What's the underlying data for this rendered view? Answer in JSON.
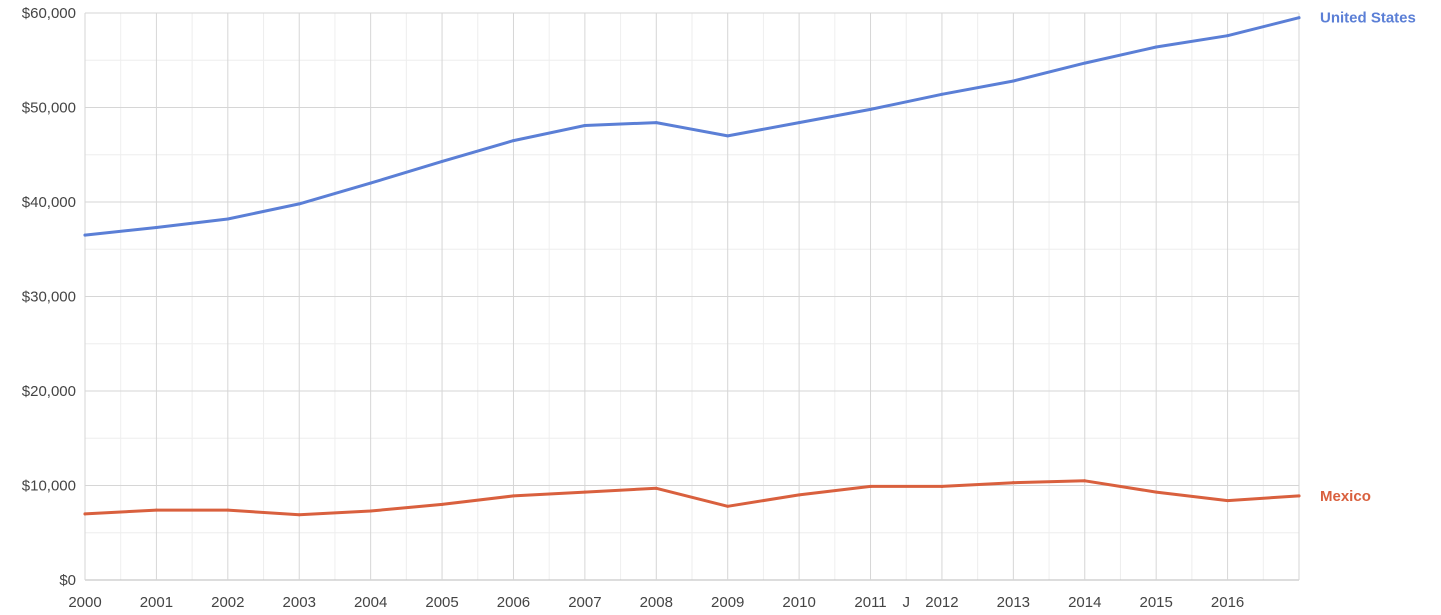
{
  "chart_data": {
    "type": "line",
    "x_ticks": [
      "2000",
      "2001",
      "2002",
      "2003",
      "2004",
      "2005",
      "2006",
      "2007",
      "2008",
      "2009",
      "2010",
      "2011",
      "2012",
      "2013",
      "2014",
      "2015",
      "2016"
    ],
    "extra_x_label": "J",
    "y_ticks": [
      "$0",
      "$10,000",
      "$20,000",
      "$30,000",
      "$40,000",
      "$50,000",
      "$60,000"
    ],
    "ylim": [
      0,
      60000
    ],
    "xlim": [
      2000,
      2017
    ],
    "grid": true,
    "series": [
      {
        "name": "United States",
        "color": "#5b7fd6",
        "x": [
          2000,
          2001,
          2002,
          2003,
          2004,
          2005,
          2006,
          2007,
          2008,
          2009,
          2010,
          2011,
          2012,
          2013,
          2014,
          2015,
          2016,
          2017
        ],
        "values": [
          36500,
          37300,
          38200,
          39800,
          42000,
          44300,
          46500,
          48100,
          48400,
          47000,
          48400,
          49800,
          51400,
          52800,
          54700,
          56400,
          57600,
          59500
        ]
      },
      {
        "name": "Mexico",
        "color": "#d9603e",
        "x": [
          2000,
          2001,
          2002,
          2003,
          2004,
          2005,
          2006,
          2007,
          2008,
          2009,
          2010,
          2011,
          2012,
          2013,
          2014,
          2015,
          2016,
          2017
        ],
        "values": [
          7000,
          7400,
          7400,
          6900,
          7300,
          8000,
          8900,
          9300,
          9700,
          7800,
          9000,
          9900,
          9900,
          10300,
          10500,
          9300,
          8400,
          8900
        ]
      }
    ]
  }
}
